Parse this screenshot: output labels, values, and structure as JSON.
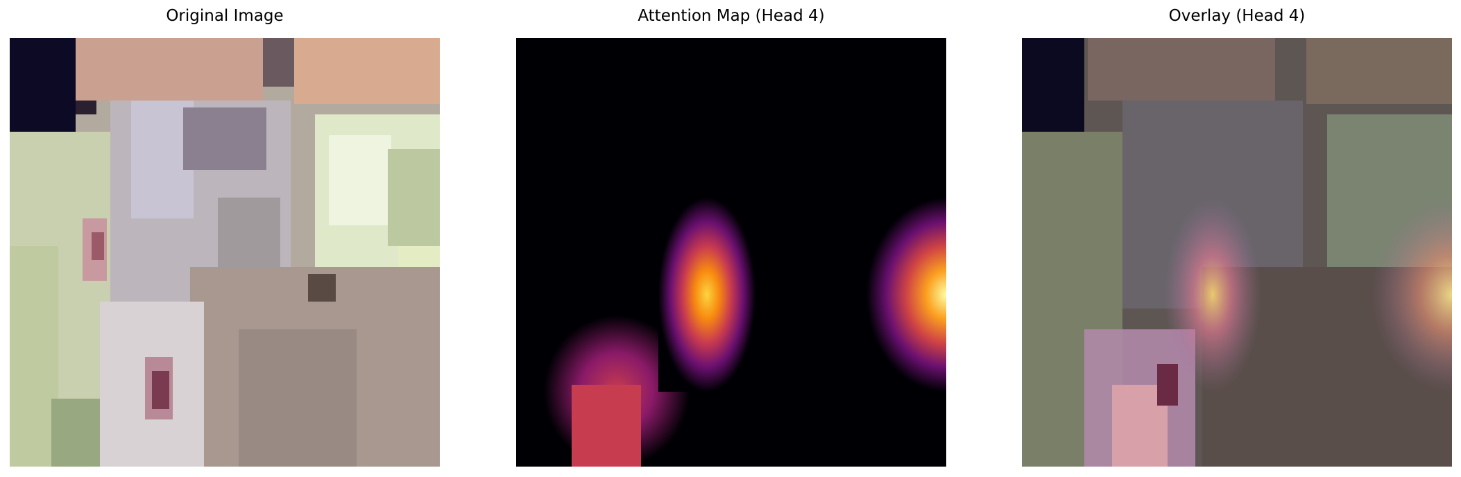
{
  "panels": [
    {
      "title": "Original Image"
    },
    {
      "title": "Attention Map (Head 4)"
    },
    {
      "title": "Overlay (Head 4)"
    }
  ],
  "colors": {
    "background": "#ffffff",
    "attention_low": "#000004",
    "attention_mid": "#bc3754",
    "attention_high": "#fcffa4"
  }
}
